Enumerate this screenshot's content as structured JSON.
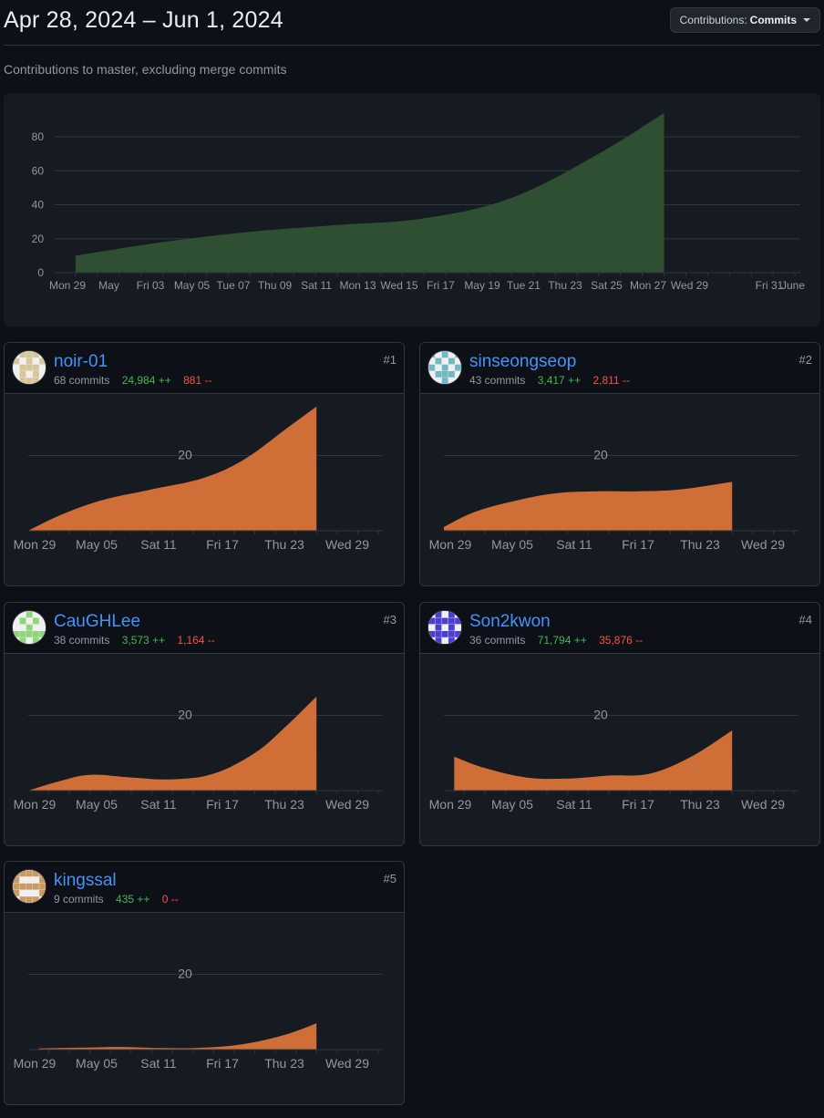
{
  "header": {
    "date_range": "Apr 28, 2024 – Jun 1, 2024",
    "contributions_label": "Contributions:",
    "contributions_value": "Commits"
  },
  "subtitle": "Contributions to master, excluding merge commits",
  "chart_data": [
    {
      "type": "area",
      "title": "",
      "x_labels": [
        "Mon 29",
        "May",
        "Fri 03",
        "May 05",
        "Tue 07",
        "Thu 09",
        "Sat 11",
        "Mon 13",
        "Wed 15",
        "Fri 17",
        "May 19",
        "Tue 21",
        "Thu 23",
        "Sat 25",
        "Mon 27",
        "Wed 29",
        "Fri 31",
        "June"
      ],
      "x_start": "2024-04-28",
      "x_end": "2024-06-01",
      "yticks": [
        0,
        20,
        40,
        60,
        80
      ],
      "ylim": [
        0,
        80
      ],
      "grid": true,
      "color": "#2f4f32",
      "series": [
        {
          "x": [
            "2024-04-29",
            "2024-05-03",
            "2024-05-07",
            "2024-05-11",
            "2024-05-15",
            "2024-05-19",
            "2024-05-23",
            "2024-05-26"
          ],
          "values": [
            10,
            18,
            24,
            28,
            32,
            44,
            70,
            94
          ]
        }
      ]
    },
    {
      "type": "area",
      "title": "",
      "x_labels": [
        "Mon 29",
        "May 05",
        "Sat 11",
        "Fri 17",
        "Thu 23",
        "Wed 29"
      ],
      "x_start": "2024-04-28",
      "x_end": "2024-06-01",
      "yticks": [
        20
      ],
      "ylim": [
        0,
        32
      ],
      "grid": true,
      "color": "#cf6e37",
      "series": [
        {
          "x": [
            "2024-04-28",
            "2024-05-01",
            "2024-05-05",
            "2024-05-10",
            "2024-05-15",
            "2024-05-19",
            "2024-05-23",
            "2024-05-26"
          ],
          "values": [
            0,
            4,
            8,
            11,
            14,
            19,
            27,
            33
          ]
        }
      ]
    },
    {
      "type": "area",
      "title": "",
      "x_labels": [
        "Mon 29",
        "May 05",
        "Sat 11",
        "Fri 17",
        "Thu 23",
        "Wed 29"
      ],
      "x_start": "2024-04-28",
      "x_end": "2024-06-01",
      "yticks": [
        20
      ],
      "ylim": [
        0,
        32
      ],
      "grid": true,
      "color": "#cf6e37",
      "series": [
        {
          "x": [
            "2024-04-28",
            "2024-05-01",
            "2024-05-05",
            "2024-05-09",
            "2024-05-13",
            "2024-05-17",
            "2024-05-21",
            "2024-05-26"
          ],
          "values": [
            1,
            5,
            8,
            10,
            10.5,
            10.5,
            11,
            13
          ]
        }
      ]
    },
    {
      "type": "area",
      "title": "",
      "x_labels": [
        "Mon 29",
        "May 05",
        "Sat 11",
        "Fri 17",
        "Thu 23",
        "Wed 29"
      ],
      "x_start": "2024-04-28",
      "x_end": "2024-06-01",
      "yticks": [
        20
      ],
      "ylim": [
        0,
        32
      ],
      "grid": true,
      "color": "#cf6e37",
      "series": [
        {
          "x": [
            "2024-04-28",
            "2024-05-01",
            "2024-05-04",
            "2024-05-08",
            "2024-05-12",
            "2024-05-16",
            "2024-05-20",
            "2024-05-23",
            "2024-05-26"
          ],
          "values": [
            0,
            2.5,
            4.2,
            3.5,
            3,
            4.5,
            10,
            17,
            25
          ]
        }
      ]
    },
    {
      "type": "area",
      "title": "",
      "x_labels": [
        "Mon 29",
        "May 05",
        "Sat 11",
        "Fri 17",
        "Thu 23",
        "Wed 29"
      ],
      "x_start": "2024-04-28",
      "x_end": "2024-06-01",
      "yticks": [
        20
      ],
      "ylim": [
        0,
        32
      ],
      "grid": true,
      "color": "#cf6e37",
      "series": [
        {
          "x": [
            "2024-04-29",
            "2024-05-02",
            "2024-05-06",
            "2024-05-10",
            "2024-05-14",
            "2024-05-18",
            "2024-05-22",
            "2024-05-26"
          ],
          "values": [
            9,
            6,
            3.5,
            3.2,
            4,
            4.5,
            9,
            16
          ]
        }
      ]
    },
    {
      "type": "area",
      "title": "",
      "x_labels": [
        "Mon 29",
        "May 05",
        "Sat 11",
        "Fri 17",
        "Thu 23",
        "Wed 29"
      ],
      "x_start": "2024-04-28",
      "x_end": "2024-06-01",
      "yticks": [
        20
      ],
      "ylim": [
        0,
        32
      ],
      "grid": true,
      "color": "#cf6e37",
      "series": [
        {
          "x": [
            "2024-04-29",
            "2024-05-03",
            "2024-05-07",
            "2024-05-11",
            "2024-05-15",
            "2024-05-19",
            "2024-05-23",
            "2024-05-26"
          ],
          "values": [
            0.3,
            0.5,
            0.7,
            0.4,
            0.5,
            1.5,
            4,
            7
          ]
        }
      ]
    }
  ],
  "contributors": [
    {
      "rank": "#1",
      "name": "noir-01",
      "commits": "68 commits",
      "additions": "24,984 ++",
      "deletions": "881 --",
      "avatar_color": "#d6c79a",
      "avatar_bg": "#f0f0f0"
    },
    {
      "rank": "#2",
      "name": "sinseongseop",
      "commits": "43 commits",
      "additions": "3,417 ++",
      "deletions": "2,811 --",
      "avatar_color": "#6fb8c4",
      "avatar_bg": "#f0f0f0"
    },
    {
      "rank": "#3",
      "name": "CauGHLee",
      "commits": "38 commits",
      "additions": "3,573 ++",
      "deletions": "1,164 --",
      "avatar_color": "#8fd67a",
      "avatar_bg": "#f0f0f0"
    },
    {
      "rank": "#4",
      "name": "Son2kwon",
      "commits": "36 commits",
      "additions": "71,794 ++",
      "deletions": "35,876 --",
      "avatar_color": "#4b3fcf",
      "avatar_bg": "#f0f0f0"
    },
    {
      "rank": "#5",
      "name": "kingssal",
      "commits": "9 commits",
      "additions": "435 ++",
      "deletions": "0 --",
      "avatar_color": "#c99a63",
      "avatar_bg": "#f0f0f0"
    }
  ]
}
